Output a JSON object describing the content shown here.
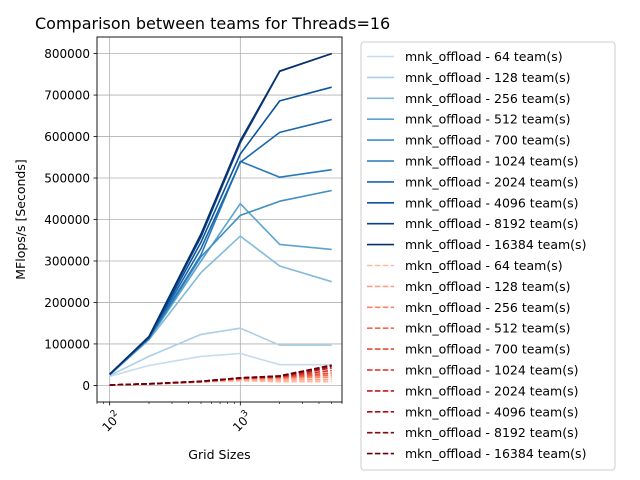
{
  "chart_data": {
    "type": "line",
    "title": "Comparison between teams for Threads=16",
    "xlabel": "Grid Sizes",
    "ylabel": "MFlops/s [Seconds]",
    "xscale": "log",
    "xlim": [
      80,
      6000
    ],
    "ylim": [
      -40000,
      840000
    ],
    "x_ticks": [
      {
        "value": 100,
        "base": "10",
        "exp": "2"
      },
      {
        "value": 1000,
        "base": "10",
        "exp": "3"
      }
    ],
    "y_ticks": [
      0,
      100000,
      200000,
      300000,
      400000,
      500000,
      600000,
      700000,
      800000
    ],
    "grid": true,
    "legend_position": "outside-right",
    "x": [
      100,
      200,
      500,
      1000,
      2000,
      5000
    ],
    "series": [
      {
        "name": "mnk_offload - 64 team(s)",
        "color": "#c6dbef",
        "dash": "solid",
        "values": [
          22000,
          48000,
          70000,
          77000,
          50000,
          50000
        ]
      },
      {
        "name": "mnk_offload - 128 team(s)",
        "color": "#abcfe6",
        "dash": "solid",
        "values": [
          24000,
          70000,
          123000,
          138000,
          97000,
          97000
        ]
      },
      {
        "name": "mnk_offload - 256 team(s)",
        "color": "#82badb",
        "dash": "solid",
        "values": [
          25000,
          110000,
          272000,
          360000,
          288000,
          250000
        ]
      },
      {
        "name": "mnk_offload - 512 team(s)",
        "color": "#5ba3cf",
        "dash": "solid",
        "values": [
          26000,
          112000,
          300000,
          438000,
          340000,
          328000
        ]
      },
      {
        "name": "mnk_offload - 700 team(s)",
        "color": "#3f8fc5",
        "dash": "solid",
        "values": [
          26000,
          113000,
          310000,
          410000,
          444000,
          470000
        ]
      },
      {
        "name": "mnk_offload - 1024 team(s)",
        "color": "#2a7ab9",
        "dash": "solid",
        "values": [
          26000,
          114000,
          315000,
          540000,
          502000,
          520000
        ]
      },
      {
        "name": "mnk_offload - 2024 team(s)",
        "color": "#1966ad",
        "dash": "solid",
        "values": [
          27000,
          115000,
          330000,
          538000,
          610000,
          641000
        ]
      },
      {
        "name": "mnk_offload - 4096 team(s)",
        "color": "#0b539a",
        "dash": "solid",
        "values": [
          27000,
          116000,
          345000,
          558000,
          686000,
          719000
        ]
      },
      {
        "name": "mnk_offload - 8192 team(s)",
        "color": "#084285",
        "dash": "solid",
        "values": [
          27000,
          117000,
          358000,
          585000,
          757000,
          800000
        ]
      },
      {
        "name": "mnk_offload - 16384 team(s)",
        "color": "#08306b",
        "dash": "solid",
        "values": [
          27000,
          118000,
          365000,
          590000,
          758000,
          800000
        ]
      },
      {
        "name": "mkn_offload - 64 team(s)",
        "color": "#fcbba1",
        "dash": "dashed",
        "values": [
          1000,
          3000,
          8000,
          11000,
          9000,
          9000
        ]
      },
      {
        "name": "mkn_offload - 128 team(s)",
        "color": "#fc9f81",
        "dash": "dashed",
        "values": [
          1000,
          3000,
          8000,
          14000,
          13000,
          14000
        ]
      },
      {
        "name": "mkn_offload - 256 team(s)",
        "color": "#fb8464",
        "dash": "dashed",
        "values": [
          1000,
          3000,
          9000,
          16000,
          17000,
          20000
        ]
      },
      {
        "name": "mkn_offload - 512 team(s)",
        "color": "#f6694a",
        "dash": "dashed",
        "values": [
          1000,
          4000,
          9000,
          17000,
          19000,
          25000
        ]
      },
      {
        "name": "mkn_offload - 700 team(s)",
        "color": "#ec4c37",
        "dash": "dashed",
        "values": [
          1000,
          4000,
          9000,
          17000,
          20000,
          30000
        ]
      },
      {
        "name": "mkn_offload - 1024 team(s)",
        "color": "#d72f27",
        "dash": "dashed",
        "values": [
          1000,
          4000,
          9000,
          17000,
          21000,
          36000
        ]
      },
      {
        "name": "mkn_offload - 2024 team(s)",
        "color": "#bf1a1e",
        "dash": "dashed",
        "values": [
          1000,
          4000,
          10000,
          18000,
          22000,
          42000
        ]
      },
      {
        "name": "mkn_offload - 4096 team(s)",
        "color": "#a50f15",
        "dash": "dashed",
        "values": [
          1000,
          4000,
          10000,
          18000,
          22000,
          46000
        ]
      },
      {
        "name": "mkn_offload - 8192 team(s)",
        "color": "#820a12",
        "dash": "dashed",
        "values": [
          1000,
          4000,
          10000,
          18000,
          23000,
          48000
        ]
      },
      {
        "name": "mkn_offload - 16384 team(s)",
        "color": "#67000d",
        "dash": "dashed",
        "values": [
          1000,
          4000,
          10000,
          18000,
          23000,
          49000
        ]
      }
    ]
  }
}
